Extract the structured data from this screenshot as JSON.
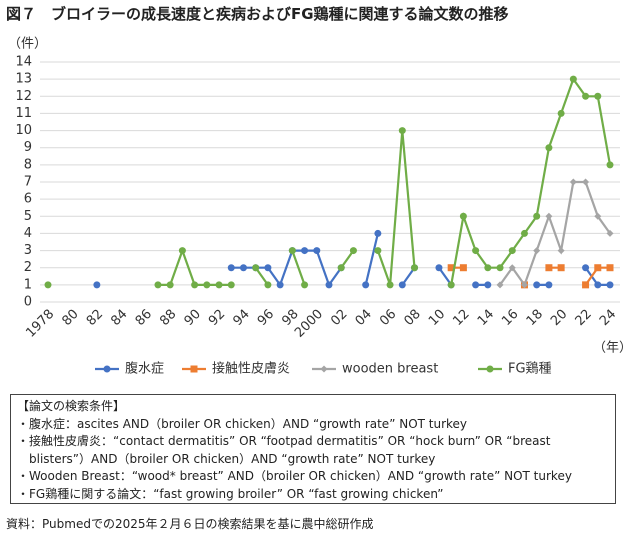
{
  "chart_data": {
    "type": "line",
    "title": "図７　ブロイラーの成長速度と疾病およびFG鶏種に関連する論文数の推移",
    "y_unit": "（件）",
    "x_unit": "（年）",
    "categories": [
      "1978",
      null,
      "80",
      null,
      "82",
      null,
      "84",
      null,
      "86",
      null,
      "88",
      null,
      "90",
      null,
      "92",
      null,
      "94",
      null,
      "96",
      null,
      "98",
      null,
      "2000",
      null,
      "02",
      null,
      "04",
      null,
      "06",
      null,
      "08",
      null,
      "10",
      null,
      "12",
      null,
      "14",
      null,
      "16",
      null,
      "18",
      null,
      "20",
      null,
      "22",
      null,
      "24"
    ],
    "series": [
      {
        "name": "腹水症",
        "color": "#4472c4",
        "marker": "circle",
        "values": [
          null,
          null,
          null,
          null,
          1,
          null,
          null,
          null,
          null,
          null,
          null,
          null,
          null,
          null,
          null,
          2,
          2,
          2,
          2,
          1,
          3,
          3,
          3,
          1,
          2,
          null,
          1,
          4,
          null,
          1,
          2,
          null,
          2,
          1,
          null,
          1,
          1,
          null,
          null,
          null,
          1,
          1,
          null,
          null,
          2,
          1,
          1
        ]
      },
      {
        "name": "接触性皮膚炎",
        "color": "#ed7d31",
        "marker": "square",
        "values": [
          null,
          null,
          null,
          null,
          null,
          null,
          null,
          null,
          null,
          null,
          null,
          null,
          null,
          null,
          null,
          null,
          null,
          null,
          null,
          null,
          null,
          null,
          null,
          null,
          null,
          null,
          null,
          null,
          null,
          null,
          null,
          null,
          null,
          2,
          2,
          null,
          null,
          null,
          null,
          1,
          null,
          2,
          2,
          null,
          1,
          2,
          2
        ]
      },
      {
        "name": "wooden breast",
        "color": "#a5a5a5",
        "marker": "diamond",
        "values": [
          null,
          null,
          null,
          null,
          null,
          null,
          null,
          null,
          null,
          null,
          null,
          null,
          null,
          null,
          null,
          null,
          null,
          null,
          null,
          null,
          null,
          null,
          null,
          null,
          null,
          null,
          null,
          null,
          null,
          null,
          null,
          null,
          null,
          null,
          null,
          null,
          null,
          1,
          2,
          1,
          3,
          5,
          3,
          7,
          7,
          5,
          4
        ]
      },
      {
        "name": "FG鶏種",
        "color": "#70ad47",
        "marker": "circle",
        "values": [
          1,
          null,
          null,
          null,
          null,
          null,
          null,
          null,
          null,
          1,
          1,
          3,
          1,
          1,
          1,
          1,
          null,
          2,
          1,
          null,
          3,
          1,
          null,
          null,
          2,
          3,
          null,
          3,
          1,
          10,
          2,
          null,
          null,
          1,
          5,
          3,
          2,
          2,
          3,
          4,
          5,
          9,
          11,
          13,
          12,
          12,
          8
        ]
      }
    ],
    "ylim": [
      0,
      14
    ],
    "yticks": [
      0,
      1,
      2,
      3,
      4,
      5,
      6,
      7,
      8,
      9,
      10,
      11,
      12,
      13,
      14
    ],
    "grid": true,
    "legend": "bottom",
    "conditions": {
      "heading": "【論文の検索条件】",
      "items": [
        "・腹水症：ascites AND（broiler OR chicken）AND “growth rate” NOT turkey",
        "・接触性皮膚炎：“contact dermatitis” OR “footpad dermatitis” OR “hock burn” OR “breast blisters”）AND（broiler OR chicken）AND “growth rate” NOT turkey",
        "・Wooden Breast：“wood* breast” AND（broiler OR chicken）AND “growth rate” NOT turkey",
        "・FG鶏種に関する論文：“fast growing broiler” OR “fast growing chicken”"
      ]
    },
    "source": "資料：Pubmedでの2025年２月６日の検索結果を基に農中総研作成"
  }
}
